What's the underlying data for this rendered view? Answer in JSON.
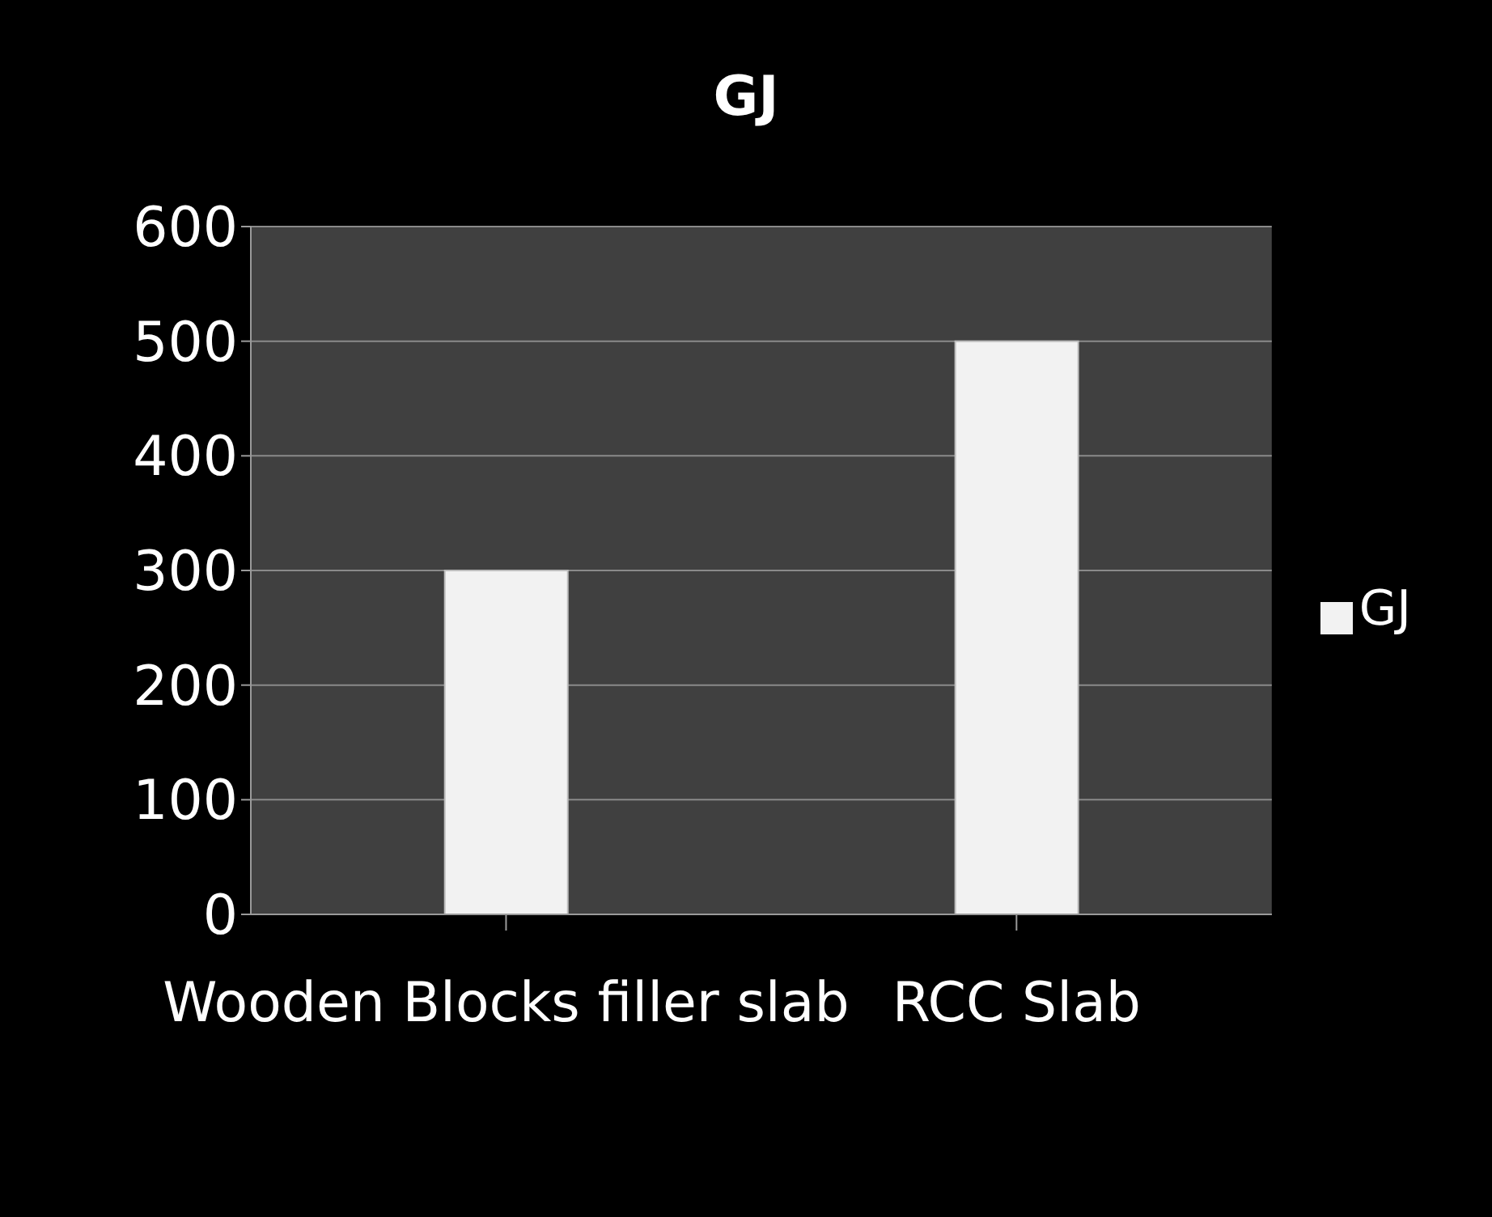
{
  "chart_data": {
    "type": "bar",
    "title": "GJ",
    "categories": [
      "Wooden Blocks filler slab",
      "RCC Slab"
    ],
    "series": [
      {
        "name": "GJ",
        "color": "#f2f2f2",
        "values": [
          300,
          500
        ]
      }
    ],
    "ylim": [
      0,
      600
    ],
    "yticks": [
      0,
      100,
      200,
      300,
      400,
      500,
      600
    ],
    "grid": "y",
    "legend": "right"
  }
}
